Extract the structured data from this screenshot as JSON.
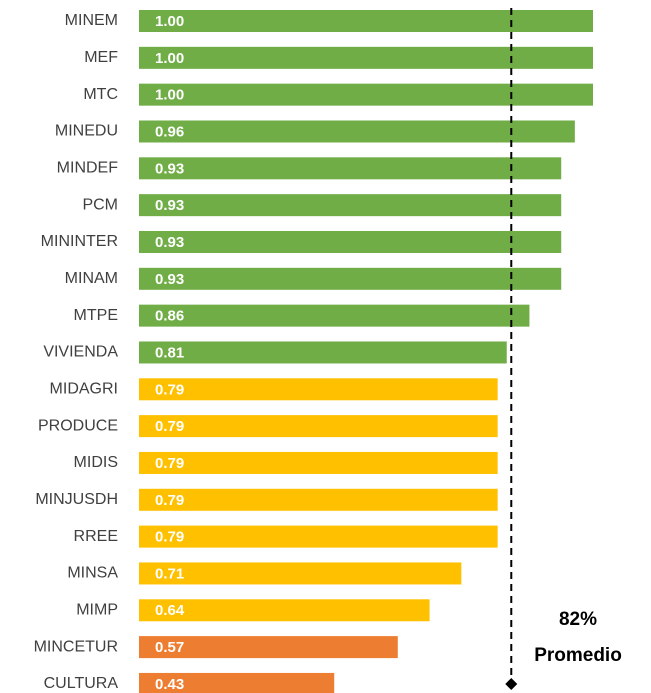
{
  "chart_data": {
    "type": "bar",
    "orientation": "horizontal",
    "categories": [
      "MINEM",
      "MEF",
      "MTC",
      "MINEDU",
      "MINDEF",
      "PCM",
      "MININTER",
      "MINAM",
      "MTPE",
      "VIVIENDA",
      "MIDAGRI",
      "PRODUCE",
      "MIDIS",
      "MINJUSDH",
      "RREE",
      "MINSA",
      "MIMP",
      "MINCETUR",
      "CULTURA"
    ],
    "values": [
      1.0,
      1.0,
      1.0,
      0.96,
      0.93,
      0.93,
      0.93,
      0.93,
      0.86,
      0.81,
      0.79,
      0.79,
      0.79,
      0.79,
      0.79,
      0.71,
      0.64,
      0.57,
      0.43
    ],
    "value_labels": [
      "1.00",
      "1.00",
      "1.00",
      "0.96",
      "0.93",
      "0.93",
      "0.93",
      "0.93",
      "0.86",
      "0.81",
      "0.79",
      "0.79",
      "0.79",
      "0.79",
      "0.79",
      "0.71",
      "0.64",
      "0.57",
      "0.43"
    ],
    "colors": [
      "#70ad47",
      "#70ad47",
      "#70ad47",
      "#70ad47",
      "#70ad47",
      "#70ad47",
      "#70ad47",
      "#70ad47",
      "#70ad47",
      "#70ad47",
      "#ffc000",
      "#ffc000",
      "#ffc000",
      "#ffc000",
      "#ffc000",
      "#ffc000",
      "#ffc000",
      "#ed7d31",
      "#ed7d31"
    ],
    "xlim": [
      0,
      1
    ],
    "average": {
      "value": 0.82,
      "label": "82%",
      "text": "Promedio"
    }
  }
}
